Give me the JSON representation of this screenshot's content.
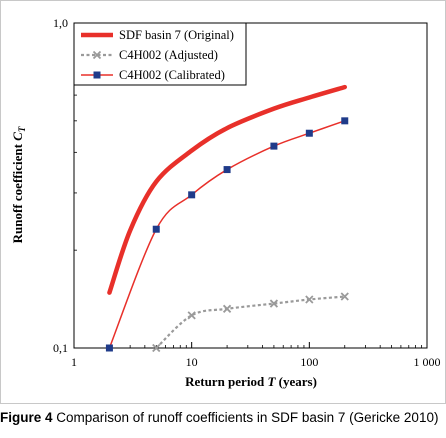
{
  "chart_data": {
    "type": "line",
    "xlabel_prefix": "Return period ",
    "xlabel_var": "T",
    "xlabel_suffix": " (years)",
    "ylabel_prefix": "Runoff coefficient ",
    "ylabel_var": "C",
    "ylabel_sub": "T",
    "x_scale": "log",
    "y_scale": "log",
    "xlim": [
      1,
      1000
    ],
    "ylim": [
      0.1,
      1.0
    ],
    "x_ticks": [
      1,
      10,
      100,
      1000
    ],
    "x_tick_labels": [
      "1",
      "10",
      "100",
      "1 000"
    ],
    "y_ticks": [
      0.1,
      1.0
    ],
    "y_tick_labels": [
      "0,1",
      "1,0"
    ],
    "grid": false,
    "legend_position": "top-left",
    "series": [
      {
        "name": "SDF basin 7 (Original)",
        "color": "#e8302a",
        "style": "thick-solid",
        "x": [
          2,
          3,
          5,
          10,
          20,
          50,
          100,
          200
        ],
        "y": [
          0.148,
          0.23,
          0.325,
          0.405,
          0.475,
          0.545,
          0.59,
          0.635
        ]
      },
      {
        "name": "C4H002 (Adjusted)",
        "color": "#9a9a9a",
        "style": "dashed-x",
        "x": [
          5,
          10,
          20,
          50,
          100,
          200
        ],
        "y": [
          0.1,
          0.126,
          0.132,
          0.137,
          0.141,
          0.144
        ]
      },
      {
        "name": "C4H002 (Calibrated)",
        "color": "#e8302a",
        "marker_color": "#1f3b8a",
        "style": "thin-square",
        "x": [
          2,
          5,
          10,
          20,
          50,
          100,
          200
        ],
        "y": [
          0.1,
          0.232,
          0.296,
          0.354,
          0.418,
          0.458,
          0.5
        ]
      }
    ]
  },
  "caption": {
    "lead": "Figure 4",
    "text": " Comparison of runoff coefficients in SDF basin 7 (Gericke 2010)"
  }
}
